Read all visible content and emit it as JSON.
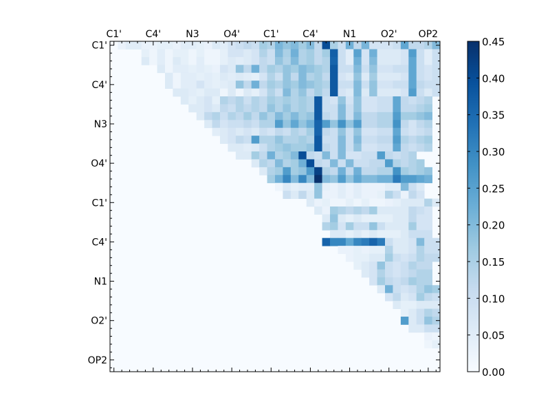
{
  "chart_data": {
    "type": "heatmap",
    "title": "",
    "xlabel": "",
    "ylabel": "",
    "n": 42,
    "tick_step": 5,
    "x_tick_labels": [
      "C1'",
      "C4'",
      "N3",
      "O4'",
      "C1'",
      "C4'",
      "N1",
      "O2'",
      "OP2"
    ],
    "y_tick_labels": [
      "C1'",
      "C4'",
      "N3",
      "O4'",
      "C1'",
      "C4'",
      "N1",
      "O2'",
      "OP2"
    ],
    "x_tick_position": "top",
    "grid": false,
    "colormap": "Blues",
    "colorbar": {
      "range": [
        0.0,
        0.45
      ],
      "ticks": [
        "0.00",
        "0.05",
        "0.10",
        "0.15",
        "0.20",
        "0.25",
        "0.30",
        "0.35",
        "0.40",
        "0.45"
      ],
      "position": "right"
    },
    "background_value": 0.0,
    "matrix_structure": "upper-triangular",
    "rows": [
      {
        "row": 0,
        "start": 1,
        "values": [
          0.03,
          0.05,
          0.05,
          0.03,
          0.03,
          0.04,
          0.04,
          0.03,
          0.05,
          0.05,
          0.04,
          0.03,
          0.06,
          0.05,
          0.08,
          0.1,
          0.12,
          0.1,
          0.16,
          0.14,
          0.21,
          0.18,
          0.2,
          0.16,
          0.2,
          0.12,
          0.4,
          0.15,
          0.1,
          0.22,
          0.12,
          0.21,
          0.08,
          0.08,
          0.08,
          0.1,
          0.24,
          0.12,
          0.12,
          0.14,
          0.2,
          0.14
        ]
      },
      {
        "row": 1,
        "start": 4,
        "values": [
          0.04,
          0.02,
          0.05,
          0.02,
          0.04,
          0.04,
          0.02,
          0.04,
          0.02,
          0.02,
          0.04,
          0.08,
          0.08,
          0.06,
          0.08,
          0.14,
          0.1,
          0.2,
          0.15,
          0.22,
          0.14,
          0.16,
          0.12,
          0.16,
          0.37,
          0.1,
          0.05,
          0.25,
          0.08,
          0.22,
          0.06,
          0.06,
          0.06,
          0.08,
          0.26,
          0.1,
          0.05,
          0.1,
          0.12
        ]
      },
      {
        "row": 2,
        "start": 4,
        "values": [
          0.06,
          0.02,
          0.05,
          0.02,
          0.06,
          0.04,
          0.02,
          0.05,
          0.02,
          0.02,
          0.04,
          0.06,
          0.05,
          0.06,
          0.08,
          0.12,
          0.1,
          0.18,
          0.14,
          0.2,
          0.14,
          0.16,
          0.12,
          0.14,
          0.36,
          0.1,
          0.05,
          0.22,
          0.08,
          0.2,
          0.06,
          0.06,
          0.06,
          0.08,
          0.24,
          0.1,
          0.05,
          0.1,
          0.1
        ]
      },
      {
        "row": 3,
        "start": 6,
        "values": [
          0.06,
          0.02,
          0.05,
          0.05,
          0.04,
          0.05,
          0.04,
          0.03,
          0.08,
          0.06,
          0.18,
          0.12,
          0.22,
          0.12,
          0.16,
          0.14,
          0.18,
          0.16,
          0.2,
          0.18,
          0.16,
          0.14,
          0.38,
          0.1,
          0.1,
          0.2,
          0.1,
          0.18,
          0.08,
          0.08,
          0.1,
          0.1,
          0.24,
          0.1,
          0.08,
          0.1,
          0.12
        ]
      },
      {
        "row": 4,
        "start": 7,
        "values": [
          0.06,
          0.02,
          0.05,
          0.05,
          0.04,
          0.05,
          0.04,
          0.06,
          0.05,
          0.06,
          0.05,
          0.04,
          0.08,
          0.14,
          0.1,
          0.18,
          0.12,
          0.2,
          0.14,
          0.16,
          0.12,
          0.38,
          0.08,
          0.06,
          0.18,
          0.06,
          0.16,
          0.06,
          0.06,
          0.06,
          0.08,
          0.24,
          0.1,
          0.08,
          0.1,
          0.1
        ]
      },
      {
        "row": 5,
        "start": 7,
        "values": [
          0.06,
          0.02,
          0.05,
          0.05,
          0.08,
          0.05,
          0.04,
          0.05,
          0.06,
          0.18,
          0.12,
          0.22,
          0.12,
          0.16,
          0.14,
          0.18,
          0.16,
          0.2,
          0.18,
          0.16,
          0.14,
          0.38,
          0.1,
          0.1,
          0.2,
          0.1,
          0.18,
          0.08,
          0.08,
          0.1,
          0.1,
          0.24,
          0.12,
          0.1,
          0.1,
          0.12
        ]
      },
      {
        "row": 6,
        "start": 8,
        "values": [
          0.06,
          0.06,
          0.05,
          0.04,
          0.06,
          0.06,
          0.02,
          0.06,
          0.02,
          0.06,
          0.04,
          0.08,
          0.14,
          0.1,
          0.2,
          0.14,
          0.18,
          0.12,
          0.16,
          0.12,
          0.38,
          0.08,
          0.06,
          0.2,
          0.06,
          0.18,
          0.06,
          0.06,
          0.06,
          0.08,
          0.26,
          0.1,
          0.06,
          0.1,
          0.12
        ]
      },
      {
        "row": 7,
        "start": 9,
        "values": [
          0.06,
          0.04,
          0.06,
          0.08,
          0.04,
          0.14,
          0.12,
          0.14,
          0.1,
          0.14,
          0.12,
          0.16,
          0.14,
          0.16,
          0.14,
          0.16,
          0.14,
          0.38,
          0.1,
          0.08,
          0.18,
          0.08,
          0.18,
          0.08,
          0.08,
          0.1,
          0.1,
          0.24,
          0.12,
          0.1,
          0.12,
          0.14
        ]
      },
      {
        "row": 8,
        "start": 10,
        "values": [
          0.06,
          0.06,
          0.08,
          0.06,
          0.12,
          0.1,
          0.14,
          0.12,
          0.14,
          0.12,
          0.18,
          0.14,
          0.18,
          0.14,
          0.16,
          0.14,
          0.38,
          0.1,
          0.1,
          0.2,
          0.1,
          0.18,
          0.08,
          0.08,
          0.1,
          0.1,
          0.24,
          0.12,
          0.12,
          0.14,
          0.16
        ]
      },
      {
        "row": 9,
        "start": 11,
        "values": [
          0.06,
          0.12,
          0.14,
          0.1,
          0.14,
          0.12,
          0.16,
          0.12,
          0.18,
          0.14,
          0.2,
          0.16,
          0.2,
          0.16,
          0.18,
          0.38,
          0.12,
          0.1,
          0.2,
          0.1,
          0.2,
          0.12,
          0.12,
          0.14,
          0.14,
          0.26,
          0.16,
          0.16,
          0.18,
          0.2
        ]
      },
      {
        "row": 10,
        "start": 12,
        "values": [
          0.06,
          0.12,
          0.08,
          0.1,
          0.1,
          0.12,
          0.1,
          0.14,
          0.14,
          0.26,
          0.18,
          0.24,
          0.18,
          0.22,
          0.36,
          0.26,
          0.18,
          0.28,
          0.18,
          0.26,
          0.12,
          0.12,
          0.14,
          0.14,
          0.28,
          0.12,
          0.08,
          0.12,
          0.14
        ]
      },
      {
        "row": 11,
        "start": 13,
        "values": [
          0.05,
          0.06,
          0.08,
          0.06,
          0.08,
          0.06,
          0.1,
          0.08,
          0.12,
          0.1,
          0.14,
          0.12,
          0.16,
          0.36,
          0.12,
          0.1,
          0.18,
          0.1,
          0.18,
          0.08,
          0.08,
          0.1,
          0.1,
          0.24,
          0.1,
          0.08,
          0.1,
          0.12
        ]
      },
      {
        "row": 12,
        "start": 14,
        "values": [
          0.06,
          0.08,
          0.12,
          0.1,
          0.26,
          0.14,
          0.14,
          0.18,
          0.14,
          0.14,
          0.16,
          0.14,
          0.38,
          0.1,
          0.1,
          0.2,
          0.1,
          0.2,
          0.1,
          0.1,
          0.12,
          0.12,
          0.26,
          0.14,
          0.12,
          0.14,
          0.16
        ]
      },
      {
        "row": 13,
        "start": 15,
        "values": [
          0.06,
          0.06,
          0.05,
          0.06,
          0.1,
          0.14,
          0.16,
          0.18,
          0.16,
          0.16,
          0.18,
          0.38,
          0.12,
          0.1,
          0.2,
          0.1,
          0.18,
          0.08,
          0.08,
          0.1,
          0.1,
          0.24,
          0.12,
          0.1,
          0.12,
          0.14
        ]
      },
      {
        "row": 14,
        "start": 16,
        "values": [
          0.06,
          0.06,
          0.16,
          0.12,
          0.22,
          0.14,
          0.16,
          0.2,
          0.4,
          0.12,
          0.1,
          0.2,
          0.1,
          0.2,
          0.08,
          0.08,
          0.1,
          0.1,
          0.26,
          0.12,
          0.1,
          0.12,
          0.14
        ]
      },
      {
        "row": 15,
        "start": 18,
        "values": [
          0.06,
          0.14,
          0.12,
          0.2,
          0.14,
          0.16,
          0.22,
          0.4,
          0.12,
          0.1,
          0.2,
          0.1,
          0.2,
          0.1,
          0.1,
          0.12,
          0.12,
          0.26,
          0.14,
          0.12,
          0.14,
          0.16
        ]
      },
      {
        "row": 16,
        "start": 19,
        "values": [
          0.06,
          0.14,
          0.16,
          0.26,
          0.16,
          0.18,
          0.26,
          0.42,
          0.14,
          0.12,
          0.22,
          0.12,
          0.22,
          0.12,
          0.12,
          0.14,
          0.14,
          0.28,
          0.16,
          0.14,
          0.16,
          0.18
        ]
      },
      {
        "row": 17,
        "start": 20,
        "values": [
          0.16,
          0.22,
          0.3,
          0.2,
          0.3,
          0.2,
          0.45,
          0.2,
          0.18,
          0.26,
          0.18,
          0.24,
          0.2,
          0.2,
          0.22,
          0.22,
          0.32,
          0.26,
          0.26,
          0.24,
          0.22
        ]
      },
      {
        "row": 18,
        "start": 21,
        "values": [
          0.02,
          0.06,
          0.04,
          0.05,
          0.05,
          0.18,
          0.04,
          0.03,
          0.05,
          0.03,
          0.05,
          0.03,
          0.03,
          0.03,
          0.05,
          0.05,
          0.2,
          0.1,
          0.06
        ]
      },
      {
        "row": 19,
        "start": 22,
        "values": [
          0.1,
          0.06,
          0.12,
          0.06,
          0.18,
          0.03,
          0.03,
          0.05,
          0.03,
          0.05,
          0.03,
          0.03,
          0.04,
          0.14,
          0.1,
          0.03,
          0.12,
          0.08
        ]
      },
      {
        "row": 20,
        "start": 25,
        "values": [
          0.06,
          0.03,
          0.04,
          0.02,
          0.02,
          0.04,
          0.02,
          0.04,
          0.02,
          0.02,
          0.03,
          0.04,
          0.06,
          0.06,
          0.06,
          0.14,
          0.06
        ]
      },
      {
        "row": 21,
        "start": 26,
        "values": [
          0.06,
          0.03,
          0.16,
          0.14,
          0.12,
          0.14,
          0.12,
          0.16,
          0.06,
          0.06,
          0.06,
          0.06,
          0.12,
          0.1,
          0.08
        ]
      },
      {
        "row": 22,
        "start": 27,
        "values": [
          0.06,
          0.18,
          0.06,
          0.04,
          0.06,
          0.04,
          0.04,
          0.04,
          0.04,
          0.06,
          0.06,
          0.12,
          0.08,
          0.08
        ]
      },
      {
        "row": 23,
        "start": 27,
        "values": [
          0.14,
          0.16,
          0.08,
          0.16,
          0.1,
          0.1,
          0.18,
          0.1,
          0.06,
          0.06,
          0.06,
          0.16,
          0.08,
          0.08
        ]
      },
      {
        "row": 24,
        "start": 28,
        "values": [
          0.06,
          0.06,
          0.04,
          0.06,
          0.04,
          0.06,
          0.04,
          0.04,
          0.04,
          0.06,
          0.1,
          0.1,
          0.1
        ]
      },
      {
        "row": 25,
        "start": 27,
        "values": [
          0.36,
          0.3,
          0.3,
          0.24,
          0.3,
          0.32,
          0.36,
          0.32,
          0.1,
          0.06,
          0.06,
          0.08,
          0.2,
          0.1,
          0.1
        ]
      },
      {
        "row": 26,
        "start": 29,
        "values": [
          0.03,
          0.03,
          0.04,
          0.03,
          0.04,
          0.04,
          0.14,
          0.06,
          0.06,
          0.08,
          0.14,
          0.1,
          0.1
        ]
      },
      {
        "row": 27,
        "start": 30,
        "values": [
          0.03,
          0.04,
          0.04,
          0.06,
          0.06,
          0.16,
          0.1,
          0.08,
          0.1,
          0.14,
          0.12,
          0.12
        ]
      },
      {
        "row": 28,
        "start": 31,
        "values": [
          0.04,
          0.06,
          0.08,
          0.18,
          0.1,
          0.08,
          0.1,
          0.14,
          0.12,
          0.12
        ]
      },
      {
        "row": 29,
        "start": 32,
        "values": [
          0.06,
          0.08,
          0.14,
          0.1,
          0.08,
          0.1,
          0.12,
          0.14,
          0.14
        ]
      },
      {
        "row": 30,
        "start": 33,
        "values": [
          0.08,
          0.16,
          0.12,
          0.1,
          0.12,
          0.16,
          0.14,
          0.14
        ]
      },
      {
        "row": 31,
        "start": 34,
        "values": [
          0.06,
          0.22,
          0.1,
          0.08,
          0.1,
          0.14,
          0.18,
          0.16
        ]
      },
      {
        "row": 32,
        "start": 35,
        "values": [
          0.08,
          0.12,
          0.06,
          0.08,
          0.16,
          0.12,
          0.1
        ]
      },
      {
        "row": 33,
        "start": 36,
        "values": [
          0.06,
          0.04,
          0.04,
          0.06,
          0.06,
          0.06
        ]
      },
      {
        "row": 34,
        "start": 37,
        "values": [
          0.04,
          0.06,
          0.1,
          0.14,
          0.12
        ]
      },
      {
        "row": 35,
        "start": 37,
        "values": [
          0.26,
          0.06,
          0.1,
          0.18,
          0.14
        ]
      },
      {
        "row": 36,
        "start": 38,
        "values": [
          0.06,
          0.06,
          0.1,
          0.1
        ]
      },
      {
        "row": 37,
        "start": 40,
        "values": [
          0.03,
          0.02
        ]
      },
      {
        "row": 38,
        "start": 40,
        "values": [
          0.02,
          0.04
        ]
      }
    ]
  }
}
